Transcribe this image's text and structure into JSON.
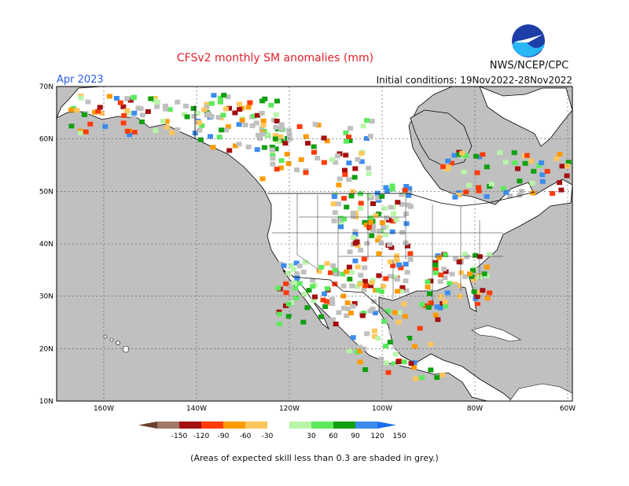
{
  "header": {
    "title": "CFSv2 monthly SM anomalies (mm)",
    "agency": "NWS/NCEP/CPC",
    "lead_month": "Apr 2023",
    "initial_conditions": "Initial conditions: 19Nov2022-28Nov2022"
  },
  "logo": {
    "text": "NOAA"
  },
  "map": {
    "lat_labels": [
      "70N",
      "60N",
      "50N",
      "40N",
      "30N",
      "20N",
      "10N"
    ],
    "lon_labels": [
      "160W",
      "140W",
      "120W",
      "100W",
      "80W",
      "60W"
    ],
    "colors": {
      "land": "#ffffff",
      "ocean": "#c0c0c0",
      "lowskill": "#c0c0c0",
      "border": "#000000"
    }
  },
  "legend": {
    "labels": [
      "-150",
      "-120",
      "-90",
      "-60",
      "-30",
      "30",
      "60",
      "90",
      "120",
      "150"
    ],
    "colors": [
      "#6b3f2a",
      "#a07868",
      "#a50f0f",
      "#ff3c0a",
      "#ff9b00",
      "#ffc65a",
      "#ffffff",
      "#b8f5a8",
      "#5cea5c",
      "#10a010",
      "#3c8cf0",
      "#1a6cf0"
    ]
  },
  "footnote": "(Areas of expected skill less than 0.3 are shaded in grey.)"
}
